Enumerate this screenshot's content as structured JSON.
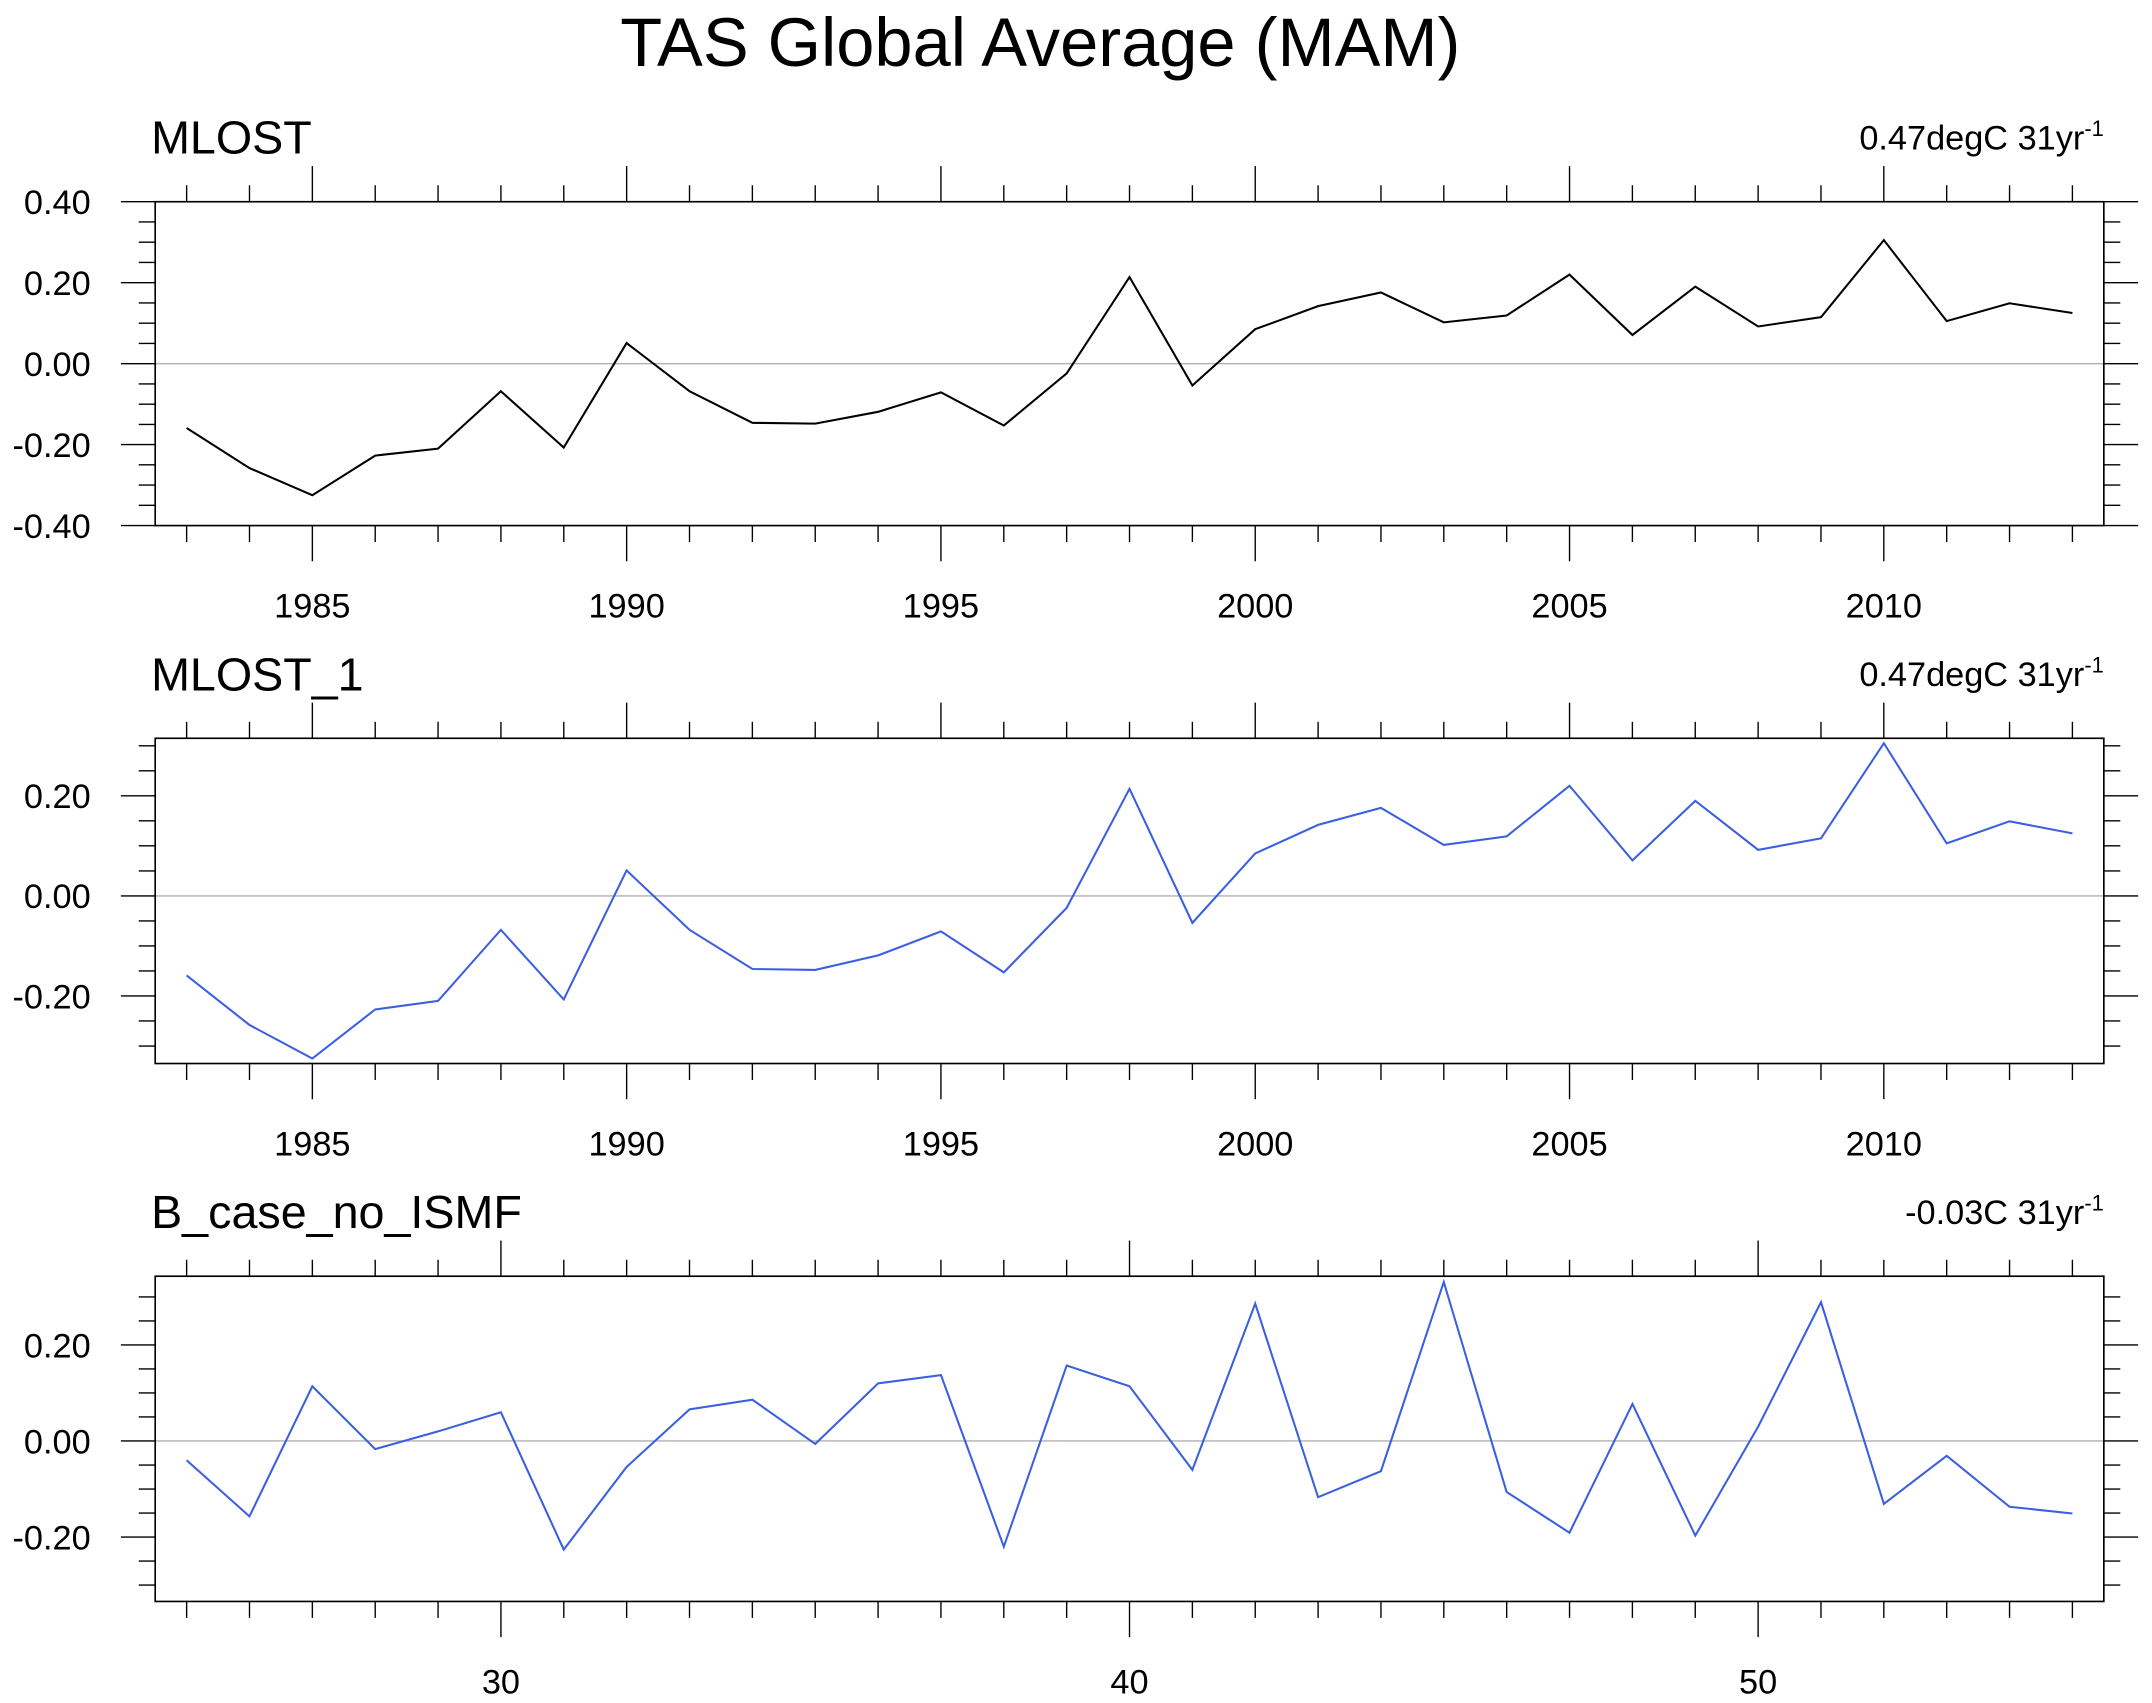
{
  "chart_data": {
    "title": "TAS Global Average (MAM)",
    "panels": [
      {
        "type": "line",
        "title": "MLOST",
        "trend_label": "0.47degC 31yr",
        "trend_sup": "-1",
        "color": "#000000",
        "x": [
          1983,
          1984,
          1985,
          1986,
          1987,
          1988,
          1989,
          1990,
          1991,
          1992,
          1993,
          1994,
          1995,
          1996,
          1997,
          1998,
          1999,
          2000,
          2001,
          2002,
          2003,
          2004,
          2005,
          2006,
          2007,
          2008,
          2009,
          2010,
          2011,
          2012,
          2013
        ],
        "values": [
          -0.159,
          -0.258,
          -0.325,
          -0.227,
          -0.21,
          -0.068,
          -0.207,
          0.051,
          -0.068,
          -0.146,
          -0.148,
          -0.119,
          -0.071,
          -0.153,
          -0.024,
          0.214,
          -0.054,
          0.085,
          0.142,
          0.176,
          0.102,
          0.119,
          0.22,
          0.071,
          0.19,
          0.092,
          0.115,
          0.305,
          0.105,
          0.149,
          0.125
        ],
        "xlim": [
          1982.5,
          2013.5
        ],
        "ylim": [
          -0.4,
          0.4
        ],
        "xticks": [
          1985,
          1990,
          1995,
          2000,
          2005,
          2010
        ],
        "xtick_labels": [
          "1985",
          "1990",
          "1995",
          "2000",
          "2005",
          "2010"
        ],
        "yticks": [
          -0.4,
          -0.2,
          0.0,
          0.2,
          0.4
        ],
        "ytick_labels": [
          "-0.40",
          "-0.20",
          "0.00",
          "0.20",
          "0.40"
        ]
      },
      {
        "type": "line",
        "title": "MLOST_1",
        "trend_label": "0.47degC 31yr",
        "trend_sup": "-1",
        "color": "#3a5fe0",
        "x": [
          1983,
          1984,
          1985,
          1986,
          1987,
          1988,
          1989,
          1990,
          1991,
          1992,
          1993,
          1994,
          1995,
          1996,
          1997,
          1998,
          1999,
          2000,
          2001,
          2002,
          2003,
          2004,
          2005,
          2006,
          2007,
          2008,
          2009,
          2010,
          2011,
          2012,
          2013
        ],
        "values": [
          -0.159,
          -0.258,
          -0.325,
          -0.227,
          -0.21,
          -0.068,
          -0.207,
          0.051,
          -0.068,
          -0.146,
          -0.148,
          -0.119,
          -0.071,
          -0.153,
          -0.024,
          0.214,
          -0.054,
          0.085,
          0.142,
          0.176,
          0.102,
          0.119,
          0.22,
          0.071,
          0.19,
          0.092,
          0.115,
          0.305,
          0.105,
          0.149,
          0.125
        ],
        "xlim": [
          1982.5,
          2013.5
        ],
        "ylim": [
          -0.335,
          0.315
        ],
        "xticks": [
          1985,
          1990,
          1995,
          2000,
          2005,
          2010
        ],
        "xtick_labels": [
          "1985",
          "1990",
          "1995",
          "2000",
          "2005",
          "2010"
        ],
        "yticks": [
          -0.2,
          0.0,
          0.2
        ],
        "ytick_labels": [
          "-0.20",
          "0.00",
          "0.20"
        ]
      },
      {
        "type": "line",
        "title": "B_case_no_ISMF",
        "trend_label": "-0.03C 31yr",
        "trend_sup": "-1",
        "color": "#3a5fe0",
        "x": [
          25,
          26,
          27,
          28,
          29,
          30,
          31,
          32,
          33,
          34,
          35,
          36,
          37,
          38,
          39,
          40,
          41,
          42,
          43,
          44,
          45,
          46,
          47,
          48,
          49,
          50,
          51,
          52,
          53,
          54,
          55
        ],
        "values": [
          -0.04,
          -0.157,
          0.114,
          -0.017,
          0.02,
          0.06,
          -0.226,
          -0.054,
          0.066,
          0.086,
          -0.006,
          0.12,
          0.137,
          -0.22,
          0.157,
          0.114,
          -0.06,
          0.286,
          -0.117,
          -0.063,
          0.331,
          -0.106,
          -0.191,
          0.077,
          -0.197,
          0.03,
          0.289,
          -0.131,
          -0.031,
          -0.137,
          -0.151
        ],
        "xlim": [
          24.5,
          55.5
        ],
        "ylim": [
          -0.334,
          0.343
        ],
        "xticks": [
          30,
          40,
          50
        ],
        "xtick_labels": [
          "30",
          "40",
          "50"
        ],
        "yticks": [
          -0.2,
          0.0,
          0.2
        ],
        "ytick_labels": [
          "-0.20",
          "0.00",
          "0.20"
        ]
      }
    ]
  }
}
